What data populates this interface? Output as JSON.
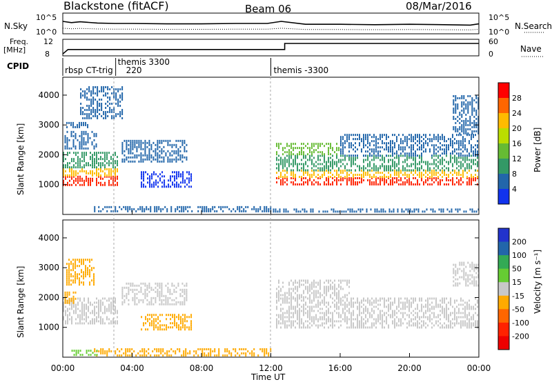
{
  "header": {
    "station": "Blackstone (fitACF)",
    "beam": "Beam 06",
    "date": "08/Mar/2016"
  },
  "summary_panels": {
    "nsky_label": "N.Sky",
    "nsky_ticks": [
      "10^5",
      "10^0"
    ],
    "nsearch_label": "N.Search",
    "nsearch_ticks": [
      "10^5",
      "10^0"
    ],
    "freq_label_line1": "Freq.",
    "freq_label_line2": "[MHz]",
    "freq_ticks": [
      "12",
      "8"
    ],
    "nave_label": "Nave",
    "nave_ticks": [
      "60",
      "0"
    ],
    "cpid_label": "CPID"
  },
  "cpid_annotations": [
    {
      "label": "rbsp CT-trig",
      "start_hour": 0.0
    },
    {
      "label": "themis 3300",
      "start_hour": 3.05
    },
    {
      "label": "220",
      "start_hour": 3.05
    },
    {
      "label": "themis -3300",
      "start_hour": 12.0
    }
  ],
  "power_colorbar": {
    "title": "Power [dB]",
    "ticks": [
      "28",
      "24",
      "20",
      "16",
      "12",
      "8",
      "4"
    ],
    "colors": [
      "#ff0000",
      "#ff6600",
      "#ffbb00",
      "#bbdd00",
      "#66bb33",
      "#339966",
      "#2266aa",
      "#1133ee"
    ]
  },
  "velocity_colorbar": {
    "title": "Velocity [m s⁻¹]",
    "ticks": [
      "200",
      "100",
      "50",
      "15",
      "-15",
      "-50",
      "-100",
      "-200"
    ],
    "colors": [
      "#2233cc",
      "#2266aa",
      "#33aa55",
      "#66cc33",
      "#c8c8c8",
      "#ffaa00",
      "#ff6600",
      "#ff2200",
      "#ee0000"
    ]
  },
  "axes": {
    "y_label": "Slant Range [km]",
    "x_label": "Time UT",
    "y_ticks": [
      "1000",
      "2000",
      "3000",
      "4000"
    ],
    "x_ticks": [
      "00:00",
      "04:00",
      "08:00",
      "12:00",
      "16:00",
      "20:00",
      "00:00"
    ]
  },
  "chart_data": {
    "type": "heatmap",
    "x_unit": "hours UT",
    "xlim": [
      0,
      24
    ],
    "ylim": [
      0,
      4600
    ],
    "nsky": {
      "points": [
        [
          0,
          3.0
        ],
        [
          0.5,
          2.7
        ],
        [
          1,
          2.9
        ],
        [
          2,
          2.6
        ],
        [
          3,
          2.5
        ],
        [
          4,
          2.5
        ],
        [
          6,
          2.4
        ],
        [
          8,
          2.4
        ],
        [
          10,
          2.5
        ],
        [
          11.8,
          2.5
        ],
        [
          12.6,
          3.0
        ],
        [
          14,
          2.3
        ],
        [
          16,
          2.3
        ],
        [
          18,
          2.2
        ],
        [
          20,
          2.3
        ],
        [
          22,
          2.2
        ],
        [
          23.5,
          2.1
        ],
        [
          24,
          2.4
        ]
      ]
    },
    "freq": {
      "points": [
        [
          0,
          8.2
        ],
        [
          0.3,
          9.8
        ],
        [
          12.8,
          9.8
        ],
        [
          12.8,
          12.0
        ],
        [
          24,
          12.0
        ]
      ]
    },
    "power_blobs": [
      {
        "t": [
          0.0,
          3.2
        ],
        "r": [
          1000,
          1300
        ],
        "color": "#ff2200"
      },
      {
        "t": [
          0.0,
          3.2
        ],
        "r": [
          1300,
          1550
        ],
        "color": "#ffbb00"
      },
      {
        "t": [
          0.0,
          3.2
        ],
        "r": [
          1550,
          2100
        ],
        "color": "#339966"
      },
      {
        "t": [
          0.1,
          2.0
        ],
        "r": [
          2200,
          2800
        ],
        "color": "#2266aa"
      },
      {
        "t": [
          0.2,
          1.5
        ],
        "r": [
          2900,
          3100
        ],
        "color": "#2266aa"
      },
      {
        "t": [
          1.0,
          3.5
        ],
        "r": [
          3200,
          4300
        ],
        "color": "#2266aa"
      },
      {
        "t": [
          4.5,
          7.4
        ],
        "r": [
          950,
          1450
        ],
        "color": "#1133ee"
      },
      {
        "t": [
          3.4,
          7.2
        ],
        "r": [
          1800,
          2500
        ],
        "color": "#2266aa"
      },
      {
        "t": [
          12.3,
          24.0
        ],
        "r": [
          1000,
          1250
        ],
        "color": "#ff2200"
      },
      {
        "t": [
          12.3,
          24.0
        ],
        "r": [
          1250,
          1500
        ],
        "color": "#ffbb00"
      },
      {
        "t": [
          12.3,
          24.0
        ],
        "r": [
          1500,
          2000
        ],
        "color": "#339966"
      },
      {
        "t": [
          12.3,
          16.0
        ],
        "r": [
          2000,
          2400
        ],
        "color": "#66bb33"
      },
      {
        "t": [
          16.0,
          24.0
        ],
        "r": [
          2000,
          2700
        ],
        "color": "#2266aa"
      },
      {
        "t": [
          22.5,
          24.0
        ],
        "r": [
          2700,
          4000
        ],
        "color": "#2266aa"
      },
      {
        "t": [
          1.8,
          12.0
        ],
        "r": [
          80,
          280
        ],
        "color": "#2266aa"
      },
      {
        "t": [
          12.0,
          24.0
        ],
        "r": [
          80,
          200
        ],
        "color": "#2266aa"
      }
    ],
    "velocity_blobs": [
      {
        "t": [
          0.0,
          3.2
        ],
        "r": [
          1100,
          2000
        ],
        "color": "#c8c8c8"
      },
      {
        "t": [
          0.2,
          1.8
        ],
        "r": [
          2400,
          3300
        ],
        "color": "#ffaa00"
      },
      {
        "t": [
          0.1,
          0.8
        ],
        "r": [
          1800,
          2200
        ],
        "color": "#ffaa00"
      },
      {
        "t": [
          4.5,
          7.4
        ],
        "r": [
          950,
          1450
        ],
        "color": "#ffaa00"
      },
      {
        "t": [
          3.4,
          7.2
        ],
        "r": [
          1800,
          2500
        ],
        "color": "#c8c8c8"
      },
      {
        "t": [
          12.3,
          24.0
        ],
        "r": [
          1000,
          2000
        ],
        "color": "#c8c8c8"
      },
      {
        "t": [
          12.3,
          16.5
        ],
        "r": [
          2000,
          2600
        ],
        "color": "#c8c8c8"
      },
      {
        "t": [
          22.5,
          24.0
        ],
        "r": [
          2400,
          3200
        ],
        "color": "#c8c8c8"
      },
      {
        "t": [
          1.8,
          12.0
        ],
        "r": [
          80,
          300
        ],
        "color": "#ffaa00"
      },
      {
        "t": [
          0.5,
          2.0
        ],
        "r": [
          80,
          250
        ],
        "color": "#66cc33"
      }
    ]
  }
}
